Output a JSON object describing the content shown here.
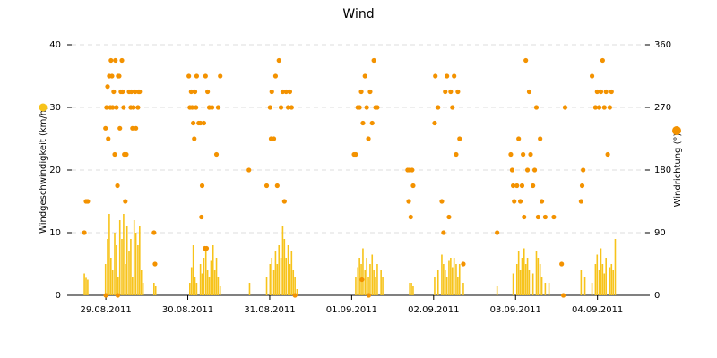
{
  "chart_data": {
    "type": "bar",
    "title": "Wind",
    "xlim": [
      0,
      168
    ],
    "xticks": [
      {
        "value": 10,
        "label": "29.08.2011"
      },
      {
        "value": 34,
        "label": "30.08.2011"
      },
      {
        "value": 58,
        "label": "31.08.2011"
      },
      {
        "value": 82,
        "label": "01.09.2011"
      },
      {
        "value": 106,
        "label": "02.09.2011"
      },
      {
        "value": 130,
        "label": "03.09.2011"
      },
      {
        "value": 154,
        "label": "04.09.2011"
      }
    ],
    "ylim": [
      0,
      40
    ],
    "yticks": [
      0,
      10,
      20,
      30,
      40
    ],
    "y2lim": [
      0,
      360
    ],
    "y2ticks": [
      0,
      90,
      180,
      270,
      360
    ],
    "grid": true,
    "series": [
      {
        "name": "Windgeschwindigkeit (km/h)",
        "type": "bar",
        "color": "#f7c31a",
        "x": [
          3.7,
          4.2,
          4.7,
          9.9,
          10.5,
          11,
          11.5,
          12,
          12.6,
          13.1,
          13.6,
          14.1,
          14.7,
          15.2,
          15.7,
          16.2,
          16.8,
          17.3,
          17.8,
          18.3,
          18.8,
          19.4,
          19.9,
          20.4,
          20.9,
          24.1,
          24.6,
          34.6,
          35.1,
          35.6,
          36.1,
          36.6,
          37.7,
          38.2,
          38.7,
          39.3,
          39.8,
          40.3,
          40.8,
          41.4,
          41.9,
          42.4,
          42.9,
          43.5,
          52.1,
          57.1,
          58.1,
          58.6,
          59.2,
          59.7,
          60.2,
          60.7,
          61.3,
          61.8,
          62.3,
          62.8,
          63.4,
          63.9,
          64.4,
          64.9,
          65.4,
          66,
          83.2,
          83.8,
          84.3,
          84.8,
          85.3,
          85.9,
          86.4,
          86.9,
          87.4,
          88,
          88.5,
          89,
          89.5,
          90.6,
          91.1,
          99,
          99.5,
          100,
          106.3,
          107.3,
          108.4,
          108.9,
          109.4,
          109.9,
          110.5,
          111,
          111.5,
          112,
          112.6,
          113.1,
          113.6,
          114.7,
          124.6,
          129.3,
          130.4,
          130.9,
          131.4,
          131.9,
          132.5,
          133,
          133.5,
          134,
          135.1,
          136.1,
          136.6,
          137.2,
          137.7,
          138.7,
          139.8,
          149.2,
          150.3,
          152.4,
          153.4,
          153.9,
          154.5,
          155,
          155.5,
          156,
          156.5,
          157.6,
          158.1,
          158.6,
          159.2
        ],
        "values": [
          3.5,
          2.8,
          2.5,
          5,
          9,
          13,
          6,
          4,
          10,
          8,
          3,
          12,
          9,
          13,
          5,
          11,
          7,
          9,
          3,
          12,
          10,
          8,
          11,
          4,
          2,
          2,
          1.5,
          2,
          4.5,
          8,
          3,
          2,
          5,
          3.5,
          6,
          7,
          4,
          3,
          5.5,
          8,
          4,
          6,
          3,
          1.5,
          2,
          3,
          5,
          6,
          4,
          7,
          5,
          8,
          6,
          11,
          9,
          6,
          8,
          5,
          7,
          4,
          3,
          1,
          3,
          4.5,
          6,
          5,
          7.5,
          4,
          6,
          3,
          5,
          6.5,
          4,
          3,
          5,
          4,
          3,
          2,
          2,
          1.5,
          3,
          4,
          6.5,
          5,
          4,
          3,
          5.5,
          6,
          4.5,
          6,
          5,
          3,
          5,
          2,
          1.5,
          3.5,
          5,
          7,
          4,
          6,
          7.5,
          5,
          6,
          4,
          3.5,
          7,
          6,
          5,
          3,
          2,
          2,
          4,
          3,
          2,
          5,
          6.5,
          4,
          7.5,
          5,
          3.5,
          6,
          4.5,
          5,
          4,
          9
        ]
      },
      {
        "name": "Windrichtung (°)",
        "type": "scatter",
        "axis": "y2",
        "color": "#f39200",
        "x": [
          3.7,
          4.2,
          4.7,
          9.9,
          10.2,
          10.5,
          10.7,
          11,
          11.3,
          11.5,
          11.8,
          12,
          12.3,
          12.6,
          12.8,
          13.1,
          13.4,
          13.6,
          13.9,
          14.1,
          14.4,
          14.7,
          14.9,
          15.2,
          15.4,
          15.7,
          16,
          16.8,
          17.3,
          17.5,
          17.8,
          18.1,
          18.6,
          18.8,
          19.4,
          19.6,
          19.9,
          24.1,
          24.4,
          10,
          13.5,
          34.3,
          34.6,
          35,
          35.3,
          35.6,
          35.9,
          36.1,
          36.4,
          36.6,
          37.2,
          37.7,
          38,
          38.2,
          38.7,
          39,
          39.2,
          39.5,
          39.8,
          40.3,
          41.1,
          42.4,
          42.9,
          43.5,
          51.9,
          57.1,
          58.1,
          58.4,
          58.6,
          59.2,
          59.7,
          60.2,
          60.7,
          61.3,
          61.8,
          62.3,
          62.8,
          63.4,
          63.9,
          64.4,
          65.4,
          82.7,
          83.2,
          83.8,
          84.3,
          84.8,
          85.3,
          85.9,
          86.4,
          86.9,
          87.4,
          88,
          88.5,
          89,
          89.5,
          87,
          85,
          98.4,
          98.7,
          99,
          99.3,
          99.7,
          100,
          106.3,
          106.5,
          107.3,
          108.4,
          108.9,
          109.4,
          109.9,
          110.5,
          111,
          111.5,
          112,
          112.6,
          113.1,
          113.6,
          114.7,
          124.6,
          128.6,
          129,
          129.3,
          129.6,
          130.4,
          130.9,
          131.4,
          131.9,
          132.2,
          132.5,
          133,
          133.5,
          134,
          134.4,
          135.1,
          135.6,
          136.1,
          136.6,
          137.2,
          137.7,
          138.7,
          141.2,
          143.5,
          144.5,
          144,
          149.2,
          149.5,
          149.8,
          152.4,
          153.4,
          153.9,
          154.5,
          155,
          155.5,
          156,
          156.5,
          157,
          157.6,
          158.1
        ],
        "values": [
          90,
          135,
          135,
          240,
          270,
          300,
          225,
          315,
          270,
          337.5,
          315,
          270,
          292.5,
          202.5,
          337.5,
          270,
          157.5,
          315,
          315,
          240,
          292.5,
          337.5,
          292.5,
          270,
          202.5,
          135,
          202.5,
          292.5,
          270,
          292.5,
          240,
          270,
          292.5,
          240,
          270,
          292.5,
          292.5,
          90,
          45,
          0,
          0,
          315,
          270,
          292.5,
          270,
          247.5,
          225,
          292.5,
          270,
          315,
          247.5,
          247.5,
          112.5,
          157.5,
          247.5,
          67.5,
          315,
          67.5,
          292.5,
          270,
          270,
          202.5,
          270,
          315,
          180,
          157.5,
          270,
          225,
          292.5,
          225,
          315,
          157.5,
          337.5,
          270,
          292.5,
          135,
          292.5,
          270,
          292.5,
          270,
          0,
          202.5,
          202.5,
          270,
          270,
          292.5,
          247.5,
          315,
          270,
          225,
          292.5,
          247.5,
          337.5,
          270,
          270,
          0,
          22.5,
          180,
          135,
          180,
          112.5,
          180,
          157.5,
          247.5,
          315,
          270,
          135,
          90,
          292.5,
          315,
          112.5,
          292.5,
          270,
          315,
          202.5,
          292.5,
          225,
          45,
          90,
          202.5,
          180,
          157.5,
          135,
          157.5,
          225,
          135,
          157.5,
          202.5,
          112.5,
          337.5,
          180,
          292.5,
          202.5,
          157.5,
          180,
          270,
          112.5,
          225,
          135,
          112.5,
          112.5,
          45,
          270,
          0,
          135,
          157.5,
          180,
          315,
          270,
          292.5,
          270,
          292.5,
          337.5,
          270,
          292.5,
          202.5,
          270,
          292.5
        ]
      }
    ]
  }
}
